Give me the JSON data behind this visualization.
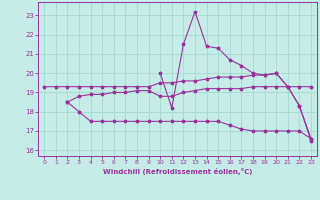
{
  "xlabel": "Windchill (Refroidissement éolien,°C)",
  "xlim": [
    -0.5,
    23.5
  ],
  "ylim": [
    15.7,
    23.7
  ],
  "yticks": [
    16,
    17,
    18,
    19,
    20,
    21,
    22,
    23
  ],
  "xticks": [
    0,
    1,
    2,
    3,
    4,
    5,
    6,
    7,
    8,
    9,
    10,
    11,
    12,
    13,
    14,
    15,
    16,
    17,
    18,
    19,
    20,
    21,
    22,
    23
  ],
  "bg_color": "#c5ece6",
  "grid_color": "#a8d8d0",
  "line_color": "#993399",
  "series": [
    {
      "x": [
        0,
        1,
        2,
        3,
        4,
        5,
        6,
        7,
        8,
        9,
        10,
        11,
        12,
        13,
        14,
        15,
        16,
        17,
        18,
        19,
        20,
        21,
        22,
        23
      ],
      "y": [
        19.3,
        19.3,
        19.3,
        19.3,
        19.3,
        19.3,
        19.3,
        19.3,
        19.3,
        19.3,
        19.5,
        19.5,
        19.6,
        19.6,
        19.7,
        19.8,
        19.8,
        19.8,
        19.9,
        19.9,
        20.0,
        19.3,
        19.3,
        19.3
      ]
    },
    {
      "x": [
        2,
        3,
        4,
        5,
        6,
        7,
        8,
        9,
        10,
        11,
        12,
        13,
        14,
        15,
        16,
        17,
        18,
        19,
        20,
        21,
        22,
        23
      ],
      "y": [
        18.5,
        18.8,
        18.9,
        18.9,
        19.0,
        19.0,
        19.1,
        19.1,
        18.8,
        18.8,
        19.0,
        19.1,
        19.2,
        19.2,
        19.2,
        19.2,
        19.3,
        19.3,
        19.3,
        19.3,
        18.3,
        16.5
      ]
    },
    {
      "x": [
        2,
        3,
        4,
        5,
        6,
        7,
        8,
        9,
        10,
        11,
        12,
        13,
        14,
        15,
        16,
        17,
        18,
        19,
        20,
        21,
        22,
        23
      ],
      "y": [
        18.5,
        18.0,
        17.5,
        17.5,
        17.5,
        17.5,
        17.5,
        17.5,
        17.5,
        17.5,
        17.5,
        17.5,
        17.5,
        17.5,
        17.3,
        17.1,
        17.0,
        17.0,
        17.0,
        17.0,
        17.0,
        16.6
      ]
    },
    {
      "x": [
        10,
        11,
        12,
        13,
        14,
        15,
        16,
        17,
        18,
        19,
        20,
        21,
        22,
        23
      ],
      "y": [
        20.0,
        18.2,
        21.5,
        23.2,
        21.4,
        21.3,
        20.7,
        20.4,
        20.0,
        19.9,
        20.0,
        19.3,
        18.3,
        16.6
      ]
    }
  ]
}
